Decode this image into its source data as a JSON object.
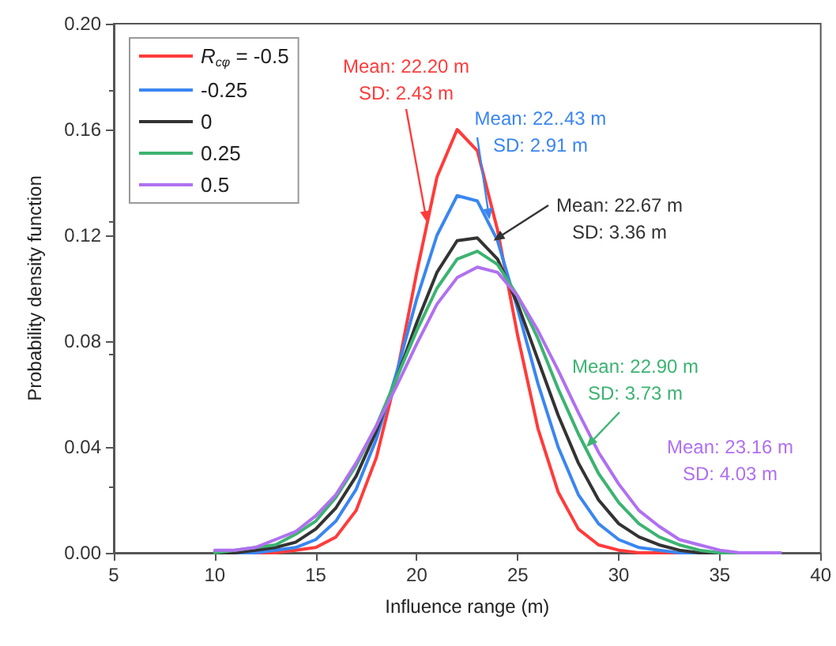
{
  "chart_data": {
    "type": "line",
    "xlabel": "Influence range (m)",
    "ylabel": "Probability density function",
    "x": [
      10,
      11,
      12,
      13,
      14,
      15,
      16,
      17,
      18,
      19,
      20,
      21,
      22,
      23,
      24,
      25,
      26,
      27,
      28,
      29,
      30,
      31,
      32,
      33,
      34,
      35,
      36,
      37,
      38
    ],
    "series": [
      {
        "name": "R$_{cφ}$ = -0.5",
        "color": "#ff3b3b",
        "values": [
          0,
          0,
          0,
          0,
          0.001,
          0.002,
          0.006,
          0.016,
          0.036,
          0.067,
          0.106,
          0.142,
          0.16,
          0.152,
          0.122,
          0.082,
          0.047,
          0.023,
          0.009,
          0.003,
          0.001,
          0,
          0,
          0,
          0,
          null,
          null,
          null,
          null
        ]
      },
      {
        "name": "-0.25",
        "color": "#3a86f0",
        "values": [
          0,
          0,
          0,
          0.001,
          0.002,
          0.005,
          0.012,
          0.024,
          0.043,
          0.068,
          0.096,
          0.12,
          0.135,
          0.133,
          0.118,
          0.092,
          0.064,
          0.04,
          0.022,
          0.011,
          0.005,
          0.002,
          0.001,
          0,
          0,
          null,
          null,
          null,
          null
        ]
      },
      {
        "name": "0",
        "color": "#333333",
        "values": [
          0,
          0,
          0.001,
          0.002,
          0.004,
          0.009,
          0.017,
          0.029,
          0.046,
          0.066,
          0.087,
          0.106,
          0.118,
          0.119,
          0.111,
          0.094,
          0.073,
          0.052,
          0.034,
          0.02,
          0.011,
          0.006,
          0.003,
          0.001,
          0,
          0,
          0,
          0,
          0
        ]
      },
      {
        "name": "0.25",
        "color": "#3cb371",
        "values": [
          0,
          0.001,
          0.002,
          0.003,
          0.007,
          0.012,
          0.021,
          0.033,
          0.048,
          0.066,
          0.084,
          0.1,
          0.111,
          0.114,
          0.109,
          0.097,
          0.081,
          0.062,
          0.045,
          0.03,
          0.019,
          0.011,
          0.006,
          0.003,
          0.001,
          0,
          0,
          0,
          0
        ]
      },
      {
        "name": "0.5",
        "color": "#b070f0",
        "values": [
          0.001,
          0.001,
          0.002,
          0.005,
          0.008,
          0.014,
          0.022,
          0.034,
          0.048,
          0.063,
          0.079,
          0.094,
          0.104,
          0.108,
          0.106,
          0.097,
          0.084,
          0.069,
          0.053,
          0.038,
          0.026,
          0.016,
          0.01,
          0.005,
          0.003,
          0.001,
          0,
          0,
          0
        ]
      }
    ],
    "annotations": [
      {
        "text": "Mean: 22.20 m\nSD: 2.43 m",
        "x": 20.5,
        "y": 0.125
      },
      {
        "text": "Mean: 22..43 m\nSD: 2.91 m",
        "x": 23.6,
        "y": 0.126
      },
      {
        "text": "Mean: 22.67 m\nSD: 3.36 m",
        "x": 23.8,
        "y": 0.118
      },
      {
        "text": "Mean: 22.90 m\nSD: 3.73 m",
        "x": 28.4,
        "y": 0.04
      },
      "Mean: 23.16 m\nSD: 4.03 m"
    ],
    "xlim": [
      5,
      40
    ],
    "xticks": [
      5,
      10,
      15,
      20,
      25,
      30,
      35,
      40
    ],
    "ylim": [
      0,
      0.2
    ],
    "yticks": [
      {
        "value": 0,
        "label": "0.00"
      },
      {
        "value": 0.04,
        "label": "0.04"
      },
      {
        "value": 0.08,
        "label": "0.08"
      },
      {
        "value": 0.12,
        "label": "0.12"
      },
      {
        "value": 0.16,
        "label": "0.16"
      },
      {
        "value": 0.2,
        "label": "0.20"
      }
    ],
    "grid": false,
    "legend": "top left",
    "marker": "none",
    "line_style": "solid"
  }
}
